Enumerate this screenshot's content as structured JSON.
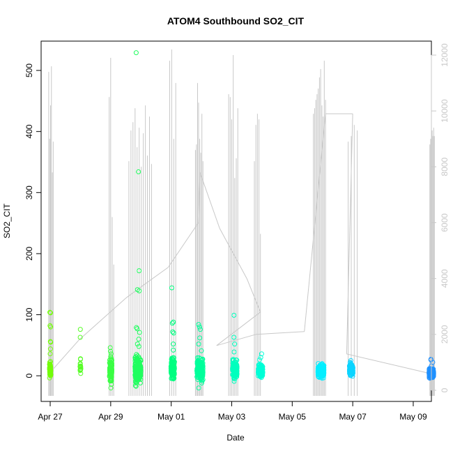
{
  "chart_data": {
    "type": "scatter",
    "title": "ATOM4 Southbound SO2_CIT",
    "xlabel": "Date",
    "ylabel": "SO2_CIT",
    "x_range_days": [
      -0.3,
      12.6
    ],
    "xlim_label": [
      "Apr 26",
      "May 09"
    ],
    "ylim": [
      -42,
      548
    ],
    "y2lim": [
      -400,
      12500
    ],
    "x_ticks": [
      {
        "label": "Apr 27",
        "day": 0
      },
      {
        "label": "Apr 29",
        "day": 2
      },
      {
        "label": "May 01",
        "day": 4
      },
      {
        "label": "May 03",
        "day": 6
      },
      {
        "label": "May 05",
        "day": 8
      },
      {
        "label": "May 07",
        "day": 10
      },
      {
        "label": "May 09",
        "day": 12
      }
    ],
    "y_ticks": [
      0,
      100,
      200,
      300,
      400,
      500
    ],
    "y2_ticks": [
      0,
      2000,
      4000,
      6000,
      8000,
      10000,
      12000
    ],
    "colors": {
      "overlay": "#c8c8c8",
      "scale": [
        "#7cfc00",
        "#00ff7f",
        "#00ffff",
        "#1e90ff"
      ]
    },
    "clusters": [
      {
        "day": 0.0,
        "width": 0.05,
        "base": 10,
        "spread": 12,
        "highs": [
          104,
          103,
          82,
          80,
          56,
          55,
          44,
          36
        ],
        "count": 55
      },
      {
        "day": 1.0,
        "width": 0.03,
        "base": 12,
        "spread": 8,
        "highs": [
          76,
          63,
          28,
          27
        ],
        "count": 14
      },
      {
        "day": 2.0,
        "width": 0.08,
        "base": 10,
        "spread": 18,
        "highs": [
          46,
          40,
          36,
          -14,
          -20
        ],
        "count": 80
      },
      {
        "day": 2.9,
        "width": 0.2,
        "base": 10,
        "spread": 20,
        "highs": [
          529,
          334,
          172,
          141,
          139,
          79,
          77,
          71,
          60,
          52,
          48
        ],
        "count": 200
      },
      {
        "day": 4.05,
        "width": 0.12,
        "base": 12,
        "spread": 15,
        "highs": [
          144,
          88,
          86,
          72,
          70,
          52,
          42
        ],
        "count": 110
      },
      {
        "day": 4.95,
        "width": 0.2,
        "base": 10,
        "spread": 18,
        "highs": [
          84,
          80,
          76,
          62,
          52,
          41,
          -20
        ],
        "count": 150
      },
      {
        "day": 6.1,
        "width": 0.15,
        "base": 10,
        "spread": 14,
        "highs": [
          99,
          63,
          52,
          39,
          -9
        ],
        "count": 130
      },
      {
        "day": 6.95,
        "width": 0.15,
        "base": 8,
        "spread": 10,
        "highs": [
          36,
          30,
          26
        ],
        "count": 120
      },
      {
        "day": 8.95,
        "width": 0.2,
        "base": 8,
        "spread": 9,
        "highs": [
          18,
          16
        ],
        "count": 200
      },
      {
        "day": 9.95,
        "width": 0.12,
        "base": 10,
        "spread": 10,
        "highs": [
          25,
          22
        ],
        "count": 130
      },
      {
        "day": 12.6,
        "width": 0.15,
        "base": 4,
        "spread": 7,
        "highs": [
          27,
          26,
          22,
          16
        ],
        "count": 200
      }
    ],
    "overlay_spikes": [
      {
        "start": -0.05,
        "end": 0.1,
        "peaks": [
          11400,
          9000,
          10200,
          11600,
          7800,
          8900
        ]
      },
      {
        "start": 1.95,
        "end": 2.1,
        "peaks": [
          10500,
          11900,
          6200,
          4500
        ]
      },
      {
        "start": 2.6,
        "end": 3.35,
        "peaks": [
          8200,
          9300,
          9600,
          10100,
          8700,
          9400,
          8000,
          9200,
          10200,
          8400,
          9800,
          8100
        ]
      },
      {
        "start": 3.95,
        "end": 4.15,
        "peaks": [
          11800,
          12200,
          9000,
          11000
        ]
      },
      {
        "start": 4.8,
        "end": 5.05,
        "peaks": [
          8600,
          8800,
          11000,
          10300,
          9000,
          8500,
          9900,
          8200
        ]
      },
      {
        "start": 5.9,
        "end": 6.2,
        "peaks": [
          10600,
          10500,
          9700,
          12000,
          7600,
          8300,
          10100
        ]
      },
      {
        "start": 6.75,
        "end": 6.95,
        "peaks": [
          8200,
          9500,
          9900,
          9700,
          5600
        ]
      },
      {
        "start": 8.7,
        "end": 9.1,
        "peaks": [
          9900,
          10100,
          10400,
          10600,
          10800,
          11200,
          11500,
          10200,
          9800,
          11800,
          10400
        ]
      },
      {
        "start": 9.85,
        "end": 10.15,
        "peaks": [
          8900,
          9100,
          9500,
          9300
        ]
      },
      {
        "start": 12.55,
        "end": 12.7,
        "peaks": [
          8800,
          9000,
          9200,
          9300,
          9100,
          9400,
          9100
        ]
      }
    ],
    "overlay_connectors": [
      {
        "x": 0.05,
        "y": 700
      },
      {
        "x": 0.95,
        "y": 1800
      },
      {
        "x": 2.5,
        "y": 3300
      },
      {
        "x": 3.0,
        "y": 3700
      },
      {
        "x": 3.9,
        "y": 4400
      },
      {
        "x": 4.9,
        "y": 6000
      },
      {
        "x": 4.95,
        "y": 7800
      },
      {
        "x": 5.6,
        "y": 5800
      },
      {
        "x": 6.5,
        "y": 4000
      },
      {
        "x": 6.95,
        "y": 2800
      },
      {
        "x": 5.5,
        "y": 1600
      },
      {
        "x": 6.8,
        "y": 2000
      },
      {
        "x": 8.4,
        "y": 2100
      },
      {
        "x": 9.1,
        "y": 9900
      },
      {
        "x": 10.0,
        "y": 9900
      },
      {
        "x": 9.8,
        "y": 1300
      },
      {
        "x": 12.55,
        "y": 600
      }
    ]
  }
}
